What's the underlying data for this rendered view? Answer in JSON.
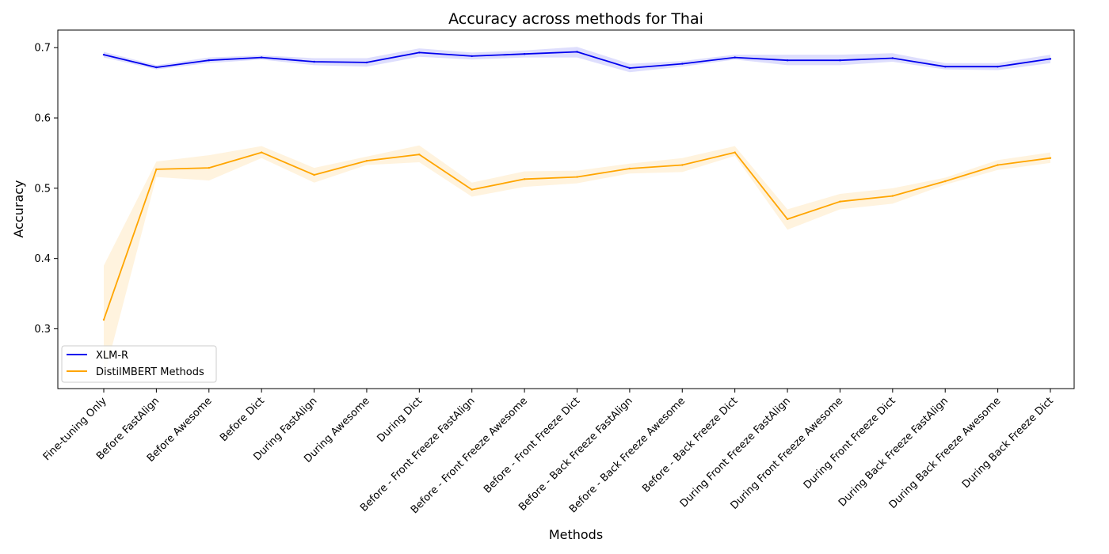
{
  "chart_data": {
    "type": "line",
    "title": "Accuracy across methods for Thai",
    "xlabel": "Methods",
    "ylabel": "Accuracy",
    "ylim": [
      0.215,
      0.725
    ],
    "yticks": [
      0.3,
      0.4,
      0.5,
      0.6,
      0.7
    ],
    "grid": false,
    "legend_position": "bottom-left",
    "categories": [
      "Fine-tuning Only",
      "Before FastAlign",
      "Before Awesome",
      "Before Dict",
      "During FastAlign",
      "During Awesome",
      "During Dict",
      "Before - Front Freeze FastAlign",
      "Before - Front Freeze Awesome",
      "Before - Front Freeze Dict",
      "Before - Back Freeze FastAlign",
      "Before - Back Freeze Awesome",
      "Before - Back Freeze Dict",
      "During Front Freeze FastAlign",
      "During Front Freeze Awesome",
      "During Front Freeze Dict",
      "During Back Freeze FastAlign",
      "During Back Freeze Awesome",
      "During Back Freeze Dict"
    ],
    "series": [
      {
        "name": "XLM-R",
        "color": "#0000ee",
        "band_color": "#0000ee",
        "values": [
          0.69,
          0.672,
          0.682,
          0.686,
          0.68,
          0.679,
          0.693,
          0.688,
          0.691,
          0.694,
          0.671,
          0.677,
          0.686,
          0.682,
          0.682,
          0.685,
          0.673,
          0.673,
          0.684
        ],
        "lower": [
          0.686,
          0.669,
          0.678,
          0.683,
          0.675,
          0.673,
          0.687,
          0.683,
          0.686,
          0.686,
          0.665,
          0.673,
          0.683,
          0.675,
          0.675,
          0.68,
          0.669,
          0.668,
          0.678
        ],
        "upper": [
          0.694,
          0.675,
          0.686,
          0.689,
          0.685,
          0.685,
          0.699,
          0.693,
          0.696,
          0.701,
          0.677,
          0.681,
          0.69,
          0.69,
          0.69,
          0.692,
          0.678,
          0.678,
          0.69
        ]
      },
      {
        "name": "DistilMBERT Methods",
        "color": "#ffa500",
        "band_color": "#ffa500",
        "values": [
          0.313,
          0.527,
          0.529,
          0.551,
          0.519,
          0.539,
          0.548,
          0.498,
          0.513,
          0.516,
          0.528,
          0.533,
          0.551,
          0.456,
          0.481,
          0.489,
          0.51,
          0.533,
          0.543
        ],
        "lower": [
          0.23,
          0.516,
          0.511,
          0.543,
          0.508,
          0.533,
          0.537,
          0.488,
          0.502,
          0.507,
          0.521,
          0.523,
          0.546,
          0.441,
          0.47,
          0.478,
          0.505,
          0.526,
          0.536
        ],
        "upper": [
          0.39,
          0.538,
          0.547,
          0.56,
          0.529,
          0.545,
          0.561,
          0.508,
          0.524,
          0.525,
          0.535,
          0.543,
          0.56,
          0.47,
          0.492,
          0.5,
          0.515,
          0.54,
          0.551
        ]
      }
    ]
  }
}
